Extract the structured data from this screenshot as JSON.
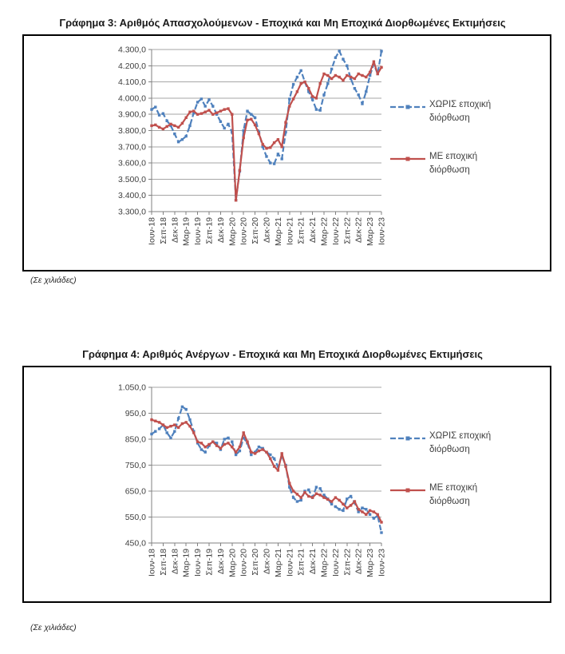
{
  "page": {
    "background": "#ffffff",
    "unit_note": "(Σε χιλιάδες)"
  },
  "colors": {
    "series_unadjusted": "#4F81BD",
    "series_adjusted": "#C0504D",
    "gridline": "#A6A6A6",
    "axis": "#808080",
    "tick_text": "#3F3F3F"
  },
  "chart_data": [
    {
      "type": "line",
      "title": "Γράφημα 3: Αριθμός Απασχολούμενων - Εποχικά και Μη Εποχικά Διορθωμένες Εκτιμήσεις",
      "unit_note": "(Σε χιλιάδες)",
      "grid": true,
      "legend_position": "right",
      "ylim": [
        3300,
        4300
      ],
      "y_tick_labels": [
        "4.300,0",
        "4.200,0",
        "4.100,0",
        "4.000,0",
        "3.900,0",
        "3.800,0",
        "3.700,0",
        "3.600,0",
        "3.500,0",
        "3.400,0",
        "3.300,0"
      ],
      "x_tick_labels": [
        "Ιουν-18",
        "Σεπ-18",
        "Δεκ-18",
        "Μαρ-19",
        "Ιουν-19",
        "Σεπ-19",
        "Δεκ-19",
        "Μαρ-20",
        "Ιουν-20",
        "Σεπ-20",
        "Δεκ-20",
        "Μαρ-21",
        "Ιουν-21",
        "Σεπ-21",
        "Δεκ-21",
        "Μαρ-22",
        "Ιουν-22",
        "Σεπ-22",
        "Δεκ-22",
        "Μαρ-23",
        "Ιουν-23"
      ],
      "x_monthly_points": 61,
      "series": [
        {
          "name": "ΧΩΡΙΣ εποχική διόρθωση",
          "color": "#4F81BD",
          "style": "dashed",
          "marker": "square",
          "values": [
            3930,
            3945,
            3895,
            3905,
            3860,
            3830,
            3780,
            3730,
            3745,
            3765,
            3830,
            3910,
            3975,
            3995,
            3950,
            3990,
            3950,
            3900,
            3855,
            3815,
            3840,
            3790,
            3370,
            3550,
            3800,
            3920,
            3900,
            3880,
            3790,
            3700,
            3640,
            3600,
            3595,
            3655,
            3625,
            3790,
            3995,
            4085,
            4130,
            4170,
            4100,
            4040,
            3990,
            3930,
            3925,
            4020,
            4090,
            4180,
            4250,
            4290,
            4240,
            4200,
            4120,
            4060,
            4020,
            3965,
            4040,
            4140,
            4210,
            4150,
            4290
          ]
        },
        {
          "name": "ΜΕ εποχική διόρθωση",
          "color": "#C0504D",
          "style": "solid",
          "marker": "square",
          "values": [
            3830,
            3835,
            3820,
            3810,
            3825,
            3840,
            3830,
            3820,
            3845,
            3880,
            3915,
            3920,
            3900,
            3905,
            3915,
            3925,
            3900,
            3910,
            3920,
            3930,
            3935,
            3900,
            3370,
            3555,
            3755,
            3865,
            3870,
            3835,
            3780,
            3715,
            3690,
            3695,
            3725,
            3745,
            3700,
            3850,
            3950,
            3995,
            4040,
            4090,
            4100,
            4060,
            4010,
            4000,
            4090,
            4150,
            4140,
            4120,
            4140,
            4130,
            4110,
            4140,
            4130,
            4120,
            4150,
            4140,
            4130,
            4160,
            4225,
            4150,
            4190
          ]
        }
      ]
    },
    {
      "type": "line",
      "title": "Γράφημα 4: Αριθμός Ανέργων - Εποχικά και Μη Εποχικά Διορθωμένες Εκτιμήσεις",
      "unit_note": "(Σε χιλιάδες)",
      "grid": true,
      "legend_position": "right",
      "ylim": [
        450,
        1050
      ],
      "y_tick_labels": [
        "1.050,0",
        "950,0",
        "850,0",
        "750,0",
        "650,0",
        "550,0",
        "450,0"
      ],
      "x_tick_labels": [
        "Ιουν-18",
        "Σεπ-18",
        "Δεκ-18",
        "Μαρ-19",
        "Ιουν-19",
        "Σεπ-19",
        "Δεκ-19",
        "Μαρ-20",
        "Ιουν-20",
        "Σεπ-20",
        "Δεκ-20",
        "Μαρ-21",
        "Ιουν-21",
        "Σεπ-21",
        "Δεκ-21",
        "Μαρ-22",
        "Ιουν-22",
        "Σεπ-22",
        "Δεκ-22",
        "Μαρ-23",
        "Ιουν-23"
      ],
      "x_monthly_points": 61,
      "series": [
        {
          "name": "ΧΩΡΙΣ εποχική διόρθωση",
          "color": "#4F81BD",
          "style": "dashed",
          "marker": "square",
          "values": [
            870,
            880,
            890,
            905,
            875,
            855,
            880,
            930,
            975,
            965,
            925,
            880,
            835,
            810,
            800,
            825,
            840,
            835,
            810,
            850,
            855,
            840,
            790,
            805,
            855,
            835,
            790,
            800,
            820,
            815,
            800,
            790,
            775,
            745,
            785,
            750,
            665,
            625,
            610,
            615,
            650,
            655,
            625,
            665,
            660,
            635,
            620,
            600,
            590,
            580,
            575,
            620,
            630,
            605,
            570,
            585,
            580,
            560,
            545,
            555,
            490
          ]
        },
        {
          "name": "ΜΕ εποχική διόρθωση",
          "color": "#C0504D",
          "style": "solid",
          "marker": "square",
          "values": [
            925,
            920,
            915,
            905,
            895,
            900,
            905,
            895,
            910,
            915,
            900,
            875,
            840,
            835,
            820,
            830,
            840,
            825,
            815,
            830,
            835,
            820,
            800,
            820,
            875,
            840,
            800,
            795,
            805,
            810,
            800,
            775,
            745,
            730,
            795,
            745,
            680,
            650,
            638,
            625,
            645,
            630,
            625,
            640,
            635,
            625,
            618,
            610,
            625,
            615,
            600,
            585,
            595,
            610,
            580,
            570,
            560,
            575,
            570,
            560,
            530
          ]
        }
      ]
    }
  ]
}
